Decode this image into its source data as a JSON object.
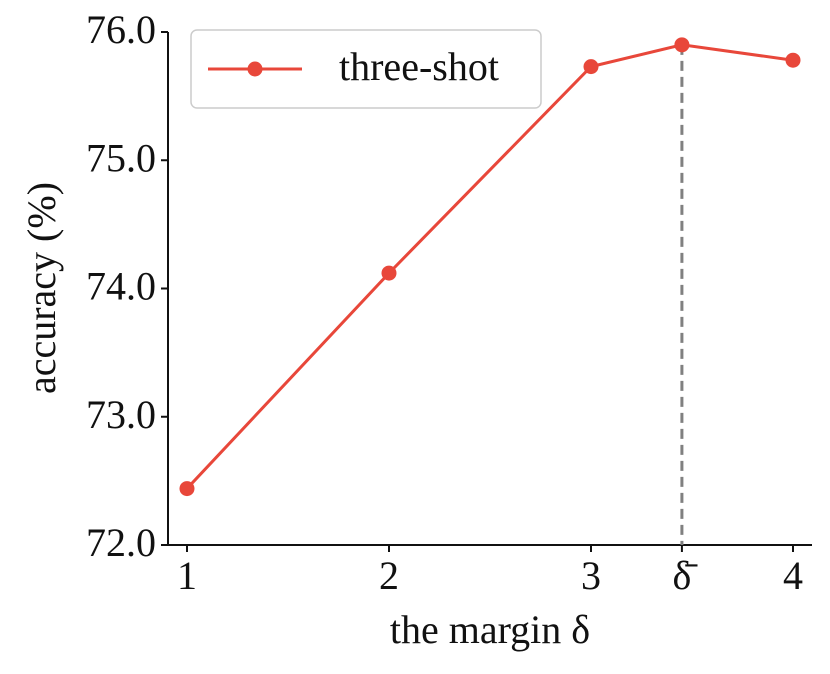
{
  "chart_data": {
    "type": "line",
    "xlabel": "the margin δ",
    "ylabel": "accuracy (%)",
    "x": [
      1,
      2,
      3,
      3.45,
      4
    ],
    "series": [
      {
        "name": "three-shot",
        "color": "#e8473a",
        "values": [
          72.44,
          74.12,
          75.73,
          75.9,
          75.78
        ]
      }
    ],
    "xlim": [
      0.906,
      4.094
    ],
    "ylim": [
      72,
      76
    ],
    "xticks": [
      1,
      2,
      3,
      {
        "value": 3.45,
        "label": "δ̄"
      },
      4
    ],
    "yticks": [
      {
        "value": 72,
        "label": "72.0"
      },
      {
        "value": 73,
        "label": "73.0"
      },
      {
        "value": 74,
        "label": "74.0"
      },
      {
        "value": 75,
        "label": "75.0"
      },
      {
        "value": 76,
        "label": "76.0"
      }
    ],
    "vline": 3.45,
    "vline_color": "#808080",
    "legend": "upper left",
    "grid": false
  }
}
